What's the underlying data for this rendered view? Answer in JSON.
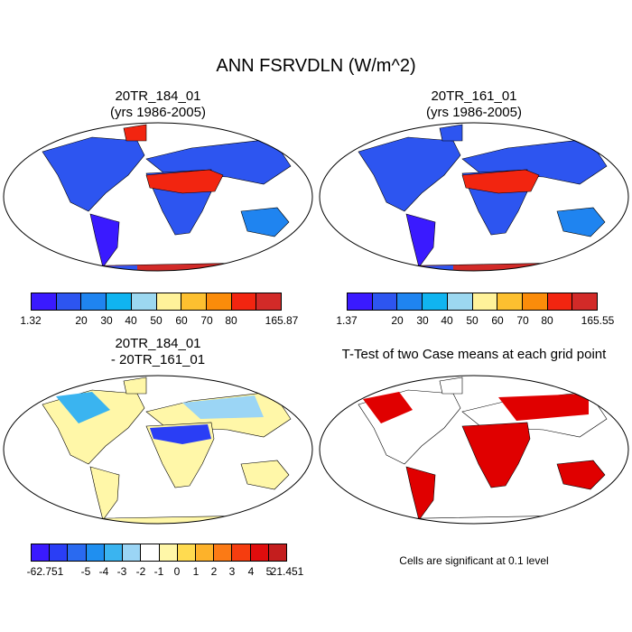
{
  "main_title": "ANN FSRVDLN (W/m^2)",
  "panels": {
    "p1": {
      "line1": "20TR_184_01",
      "line2": "(yrs 1986-2005)"
    },
    "p2": {
      "line1": "20TR_161_01",
      "line2": "(yrs 1986-2005)"
    },
    "p3": {
      "line1": "20TR_184_01",
      "line2": "- 20TR_161_01"
    },
    "p4": {
      "line1": "T-Test of two Case means at each grid point"
    }
  },
  "colorbar_seq": {
    "colors": [
      "#3a1aff",
      "#2d55f0",
      "#1f84f0",
      "#10b4f0",
      "#9cd8f0",
      "#fff29a",
      "#fdc030",
      "#fb8c0a",
      "#f22510",
      "#d22a28"
    ]
  },
  "colorbar1_labels": [
    "1.32",
    "20",
    "30",
    "40",
    "50",
    "60",
    "70",
    "80",
    "165.87"
  ],
  "colorbar2_labels": [
    "1.37",
    "20",
    "30",
    "40",
    "50",
    "60",
    "70",
    "80",
    "165.55"
  ],
  "colorbar_diff": {
    "colors": [
      "#3a1aff",
      "#2a3ef5",
      "#2a6af0",
      "#1f8ff0",
      "#3ab4f0",
      "#9bd5f5",
      "#ffffff",
      "#fff7a8",
      "#ffdb50",
      "#fdb22a",
      "#fb7a15",
      "#f53d0f",
      "#e00d0d",
      "#c41e1e"
    ],
    "labels": [
      "-62.751",
      "-5",
      "-4",
      "-3",
      "-2",
      "-1",
      "0",
      "1",
      "2",
      "3",
      "4",
      "5",
      "21.451"
    ]
  },
  "significance_note": "Cells are significant at 0.1 level",
  "colors": {
    "significant": "#e00000",
    "land_outline": "#000000"
  }
}
